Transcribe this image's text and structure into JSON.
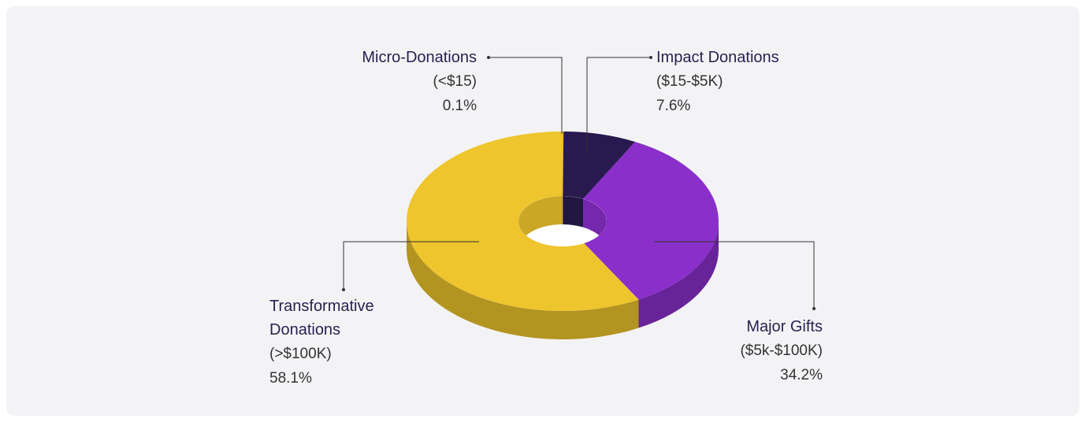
{
  "chart_data": {
    "type": "donut",
    "categories": [
      "Micro-Donations",
      "Impact Donations",
      "Major Gifts",
      "Transformative Donations"
    ],
    "ranges": [
      "(<$15)",
      "($15-$5K)",
      "($5k-$100K)",
      "(>$100K)"
    ],
    "values": [
      0.1,
      7.6,
      34.2,
      58.1
    ],
    "value_labels": [
      "0.1%",
      "7.6%",
      "34.2%",
      "58.1%"
    ],
    "colors": [
      "#f0a82c",
      "#281a4e",
      "#8a2fca",
      "#eec52c"
    ]
  }
}
